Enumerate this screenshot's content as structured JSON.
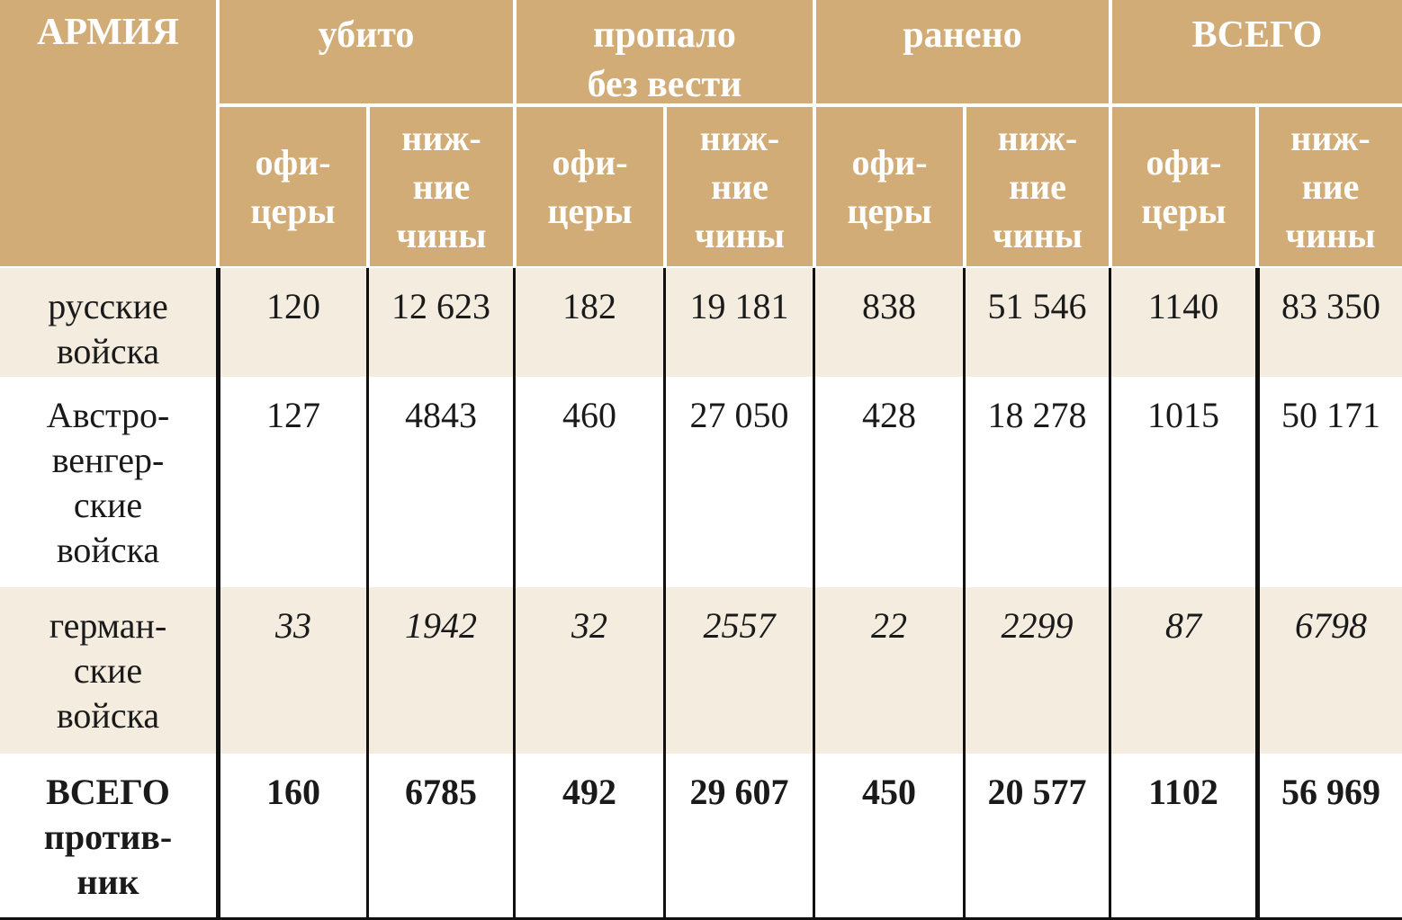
{
  "chart_data": {
    "type": "table",
    "corner_header": "АРМИЯ",
    "column_groups": [
      {
        "label": "убито"
      },
      {
        "label": "пропало\nбез вести"
      },
      {
        "label": "ранено"
      },
      {
        "label": "ВСЕГО"
      }
    ],
    "sub_headers": {
      "officers": "офи-\nцеры",
      "lower_ranks": "ниж-\nние\nчины"
    },
    "rows": [
      {
        "army": "русские\nвойска",
        "values": [
          "120",
          "12 623",
          "182",
          "19 181",
          "838",
          "51 546",
          "1140",
          "83 350"
        ],
        "numeric": [
          120,
          12623,
          182,
          19181,
          838,
          51546,
          1140,
          83350
        ]
      },
      {
        "army": "Австро-\nвенгер-\nские\nвойска",
        "values": [
          "127",
          "4843",
          "460",
          "27 050",
          "428",
          "18 278",
          "1015",
          "50 171"
        ],
        "numeric": [
          127,
          4843,
          460,
          27050,
          428,
          18278,
          1015,
          50171
        ]
      },
      {
        "army": "герман-\nские\nвойска",
        "values": [
          "33",
          "1942",
          "32",
          "2557",
          "22",
          "2299",
          "87",
          "6798"
        ],
        "numeric": [
          33,
          1942,
          32,
          2557,
          22,
          2299,
          87,
          6798
        ]
      },
      {
        "army": "ВСЕГО\nпротив-\nник",
        "values": [
          "160",
          "6785",
          "492",
          "29 607",
          "450",
          "20 577",
          "1102",
          "56 969"
        ],
        "numeric": [
          160,
          6785,
          492,
          29607,
          450,
          20577,
          1102,
          56969
        ]
      }
    ],
    "colors": {
      "header_bg": "#d2ac77",
      "header_text": "#ffffff",
      "stripe_bg": "#f3ecdf",
      "plain_bg": "#ffffff",
      "text": "#1a1a1a",
      "grid_line": "#111111"
    }
  }
}
